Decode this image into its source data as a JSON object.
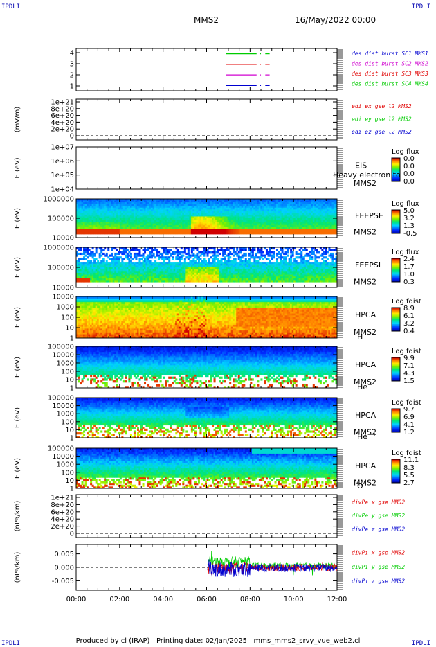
{
  "header": {
    "corner_label": "IPDLI",
    "spacecraft": "MMS2",
    "datetime": "16/May/2022 00:00"
  },
  "footer": {
    "text": "Produced by cl (IRAP)   Printing date: 02/Jan/2025   mms_mms2_srvy_vue_web2.cl"
  },
  "colors": {
    "red": "#e00000",
    "green": "#00cc00",
    "blue": "#0000d0",
    "magenta": "#d000d0",
    "grey": "#888888"
  },
  "time_axis": {
    "labels": [
      "00:00",
      "02:00",
      "04:00",
      "06:00",
      "08:00",
      "10:00",
      "12:00"
    ],
    "range_hours": [
      0,
      12
    ]
  },
  "chart_data": [
    {
      "type": "line",
      "id": "availability",
      "yticks": [
        "4",
        "3",
        "2",
        "1"
      ],
      "ylim": [
        0.5,
        4.5
      ],
      "legend": [
        {
          "label": "des dist burst SC1 MMS1",
          "color": "#0000d0"
        },
        {
          "label": "des dist burst SC2 MMS2",
          "color": "#d000d0"
        },
        {
          "label": "des dist burst SC3 MMS3",
          "color": "#e00000"
        },
        {
          "label": "des dist burst SC4 MMS4",
          "color": "#00cc00"
        }
      ],
      "series": [
        {
          "level": 4,
          "color": "#00cc00",
          "intervals": [
            [
              6.9,
              8.3
            ],
            [
              8.45,
              8.5
            ],
            [
              8.7,
              8.9
            ]
          ]
        },
        {
          "level": 3,
          "color": "#e00000",
          "intervals": [
            [
              6.9,
              8.3
            ],
            [
              8.45,
              8.5
            ],
            [
              8.7,
              8.9
            ]
          ]
        },
        {
          "level": 2,
          "color": "#d000d0",
          "intervals": [
            [
              6.9,
              8.3
            ],
            [
              8.45,
              8.5
            ],
            [
              8.7,
              8.9
            ]
          ]
        },
        {
          "level": 1,
          "color": "#0000d0",
          "intervals": [
            [
              6.9,
              8.3
            ],
            [
              8.45,
              8.5
            ],
            [
              8.7,
              8.9
            ]
          ]
        }
      ]
    },
    {
      "type": "line",
      "id": "edi",
      "ylabel": "(mV/m)",
      "yticks": [
        "1e+21",
        "8e+20",
        "6e+20",
        "4e+20",
        "2e+20",
        "0"
      ],
      "ylim": [
        0,
        1e+21
      ],
      "legend": [
        {
          "label": "edi ex gse l2 MMS2",
          "color": "#e00000"
        },
        {
          "label": "edi ey gse l2 MMS2",
          "color": "#00cc00"
        },
        {
          "label": "edi ez gse l2 MMS2",
          "color": "#0000d0"
        }
      ]
    },
    {
      "type": "heatmap",
      "id": "eis",
      "ylabel": "E (eV)",
      "yticks": [
        "1e+07",
        "1e+06",
        "1e+05",
        "1e+04"
      ],
      "instrument": "EIS",
      "spacecraft": "MMS2",
      "species": "Heavy electron to",
      "colorbar_title": "Log flux",
      "colorbar_ticks": [
        "0.0",
        "0.0",
        "0.0",
        "0.0"
      ],
      "empty": true
    },
    {
      "type": "heatmap",
      "id": "feepse",
      "ylabel": "E (eV)",
      "yticks": [
        "1000000",
        "100000",
        "10000"
      ],
      "instrument": "FEEPSE",
      "spacecraft": "MMS2",
      "colorbar_title": "Log flux",
      "colorbar_ticks": [
        "5.0",
        "3.2",
        "1.3",
        "-0.5"
      ]
    },
    {
      "type": "heatmap",
      "id": "feepsi",
      "ylabel": "E (eV)",
      "yticks": [
        "1000000",
        "100000",
        "10000"
      ],
      "instrument": "FEEPSI",
      "spacecraft": "MMS2",
      "colorbar_title": "Log flux",
      "colorbar_ticks": [
        "2.4",
        "1.7",
        "1.0",
        "0.3"
      ]
    },
    {
      "type": "heatmap",
      "id": "hpca_h",
      "ylabel": "E (eV)",
      "yticks": [
        "10000",
        "1000",
        "100",
        "10",
        "1"
      ],
      "instrument": "HPCA",
      "spacecraft": "MMS2",
      "species": "H",
      "species_sup": "+",
      "colorbar_title": "Log fdist",
      "colorbar_ticks": [
        "8.9",
        "6.1",
        "3.2",
        "0.4"
      ]
    },
    {
      "type": "heatmap",
      "id": "hpca_he",
      "ylabel": "E (eV)",
      "yticks": [
        "100000",
        "10000",
        "1000",
        "100",
        "10",
        "1"
      ],
      "instrument": "HPCA",
      "spacecraft": "MMS2",
      "species": "He",
      "species_sup": "+",
      "colorbar_title": "Log fdist",
      "colorbar_ticks": [
        "9.9",
        "7.1",
        "4.3",
        "1.5"
      ]
    },
    {
      "type": "heatmap",
      "id": "hpca_hepp",
      "ylabel": "E (eV)",
      "yticks": [
        "100000",
        "10000",
        "1000",
        "100",
        "10",
        "1"
      ],
      "instrument": "HPCA",
      "spacecraft": "MMS2",
      "species": "He",
      "species_sup": "++",
      "colorbar_title": "Log fdist",
      "colorbar_ticks": [
        "9.7",
        "6.9",
        "4.1",
        "1.2"
      ]
    },
    {
      "type": "heatmap",
      "id": "hpca_o",
      "ylabel": "E (eV)",
      "yticks": [
        "100000",
        "10000",
        "1000",
        "100",
        "10",
        "1"
      ],
      "instrument": "HPCA",
      "spacecraft": "MMS2",
      "species": "O",
      "species_sup": "+",
      "colorbar_title": "Log fdist",
      "colorbar_ticks": [
        "11.1",
        "8.3",
        "5.5",
        "2.7"
      ]
    },
    {
      "type": "line",
      "id": "divpe",
      "ylabel": "(nPa/km)",
      "yticks": [
        "1e+21",
        "8e+20",
        "6e+20",
        "4e+20",
        "2e+20",
        "0"
      ],
      "ylim": [
        0,
        1e+21
      ],
      "legend": [
        {
          "label": "divPe x gse MMS2",
          "color": "#e00000"
        },
        {
          "label": "divPe y gse MMS2",
          "color": "#00cc00"
        },
        {
          "label": "divPe z gse MMS2",
          "color": "#0000d0"
        }
      ]
    },
    {
      "type": "line",
      "id": "divpi",
      "ylabel": "(nPa/km)",
      "yticks": [
        "0.005",
        "0.000",
        "-0.005"
      ],
      "ylim": [
        -0.0085,
        0.0085
      ],
      "legend": [
        {
          "label": "divPi x gse MMS2",
          "color": "#e00000"
        },
        {
          "label": "divPi y gse MMS2",
          "color": "#00cc00"
        },
        {
          "label": "divPi z gse MMS2",
          "color": "#0000d0"
        }
      ],
      "data_start_hour": 6.05
    }
  ]
}
